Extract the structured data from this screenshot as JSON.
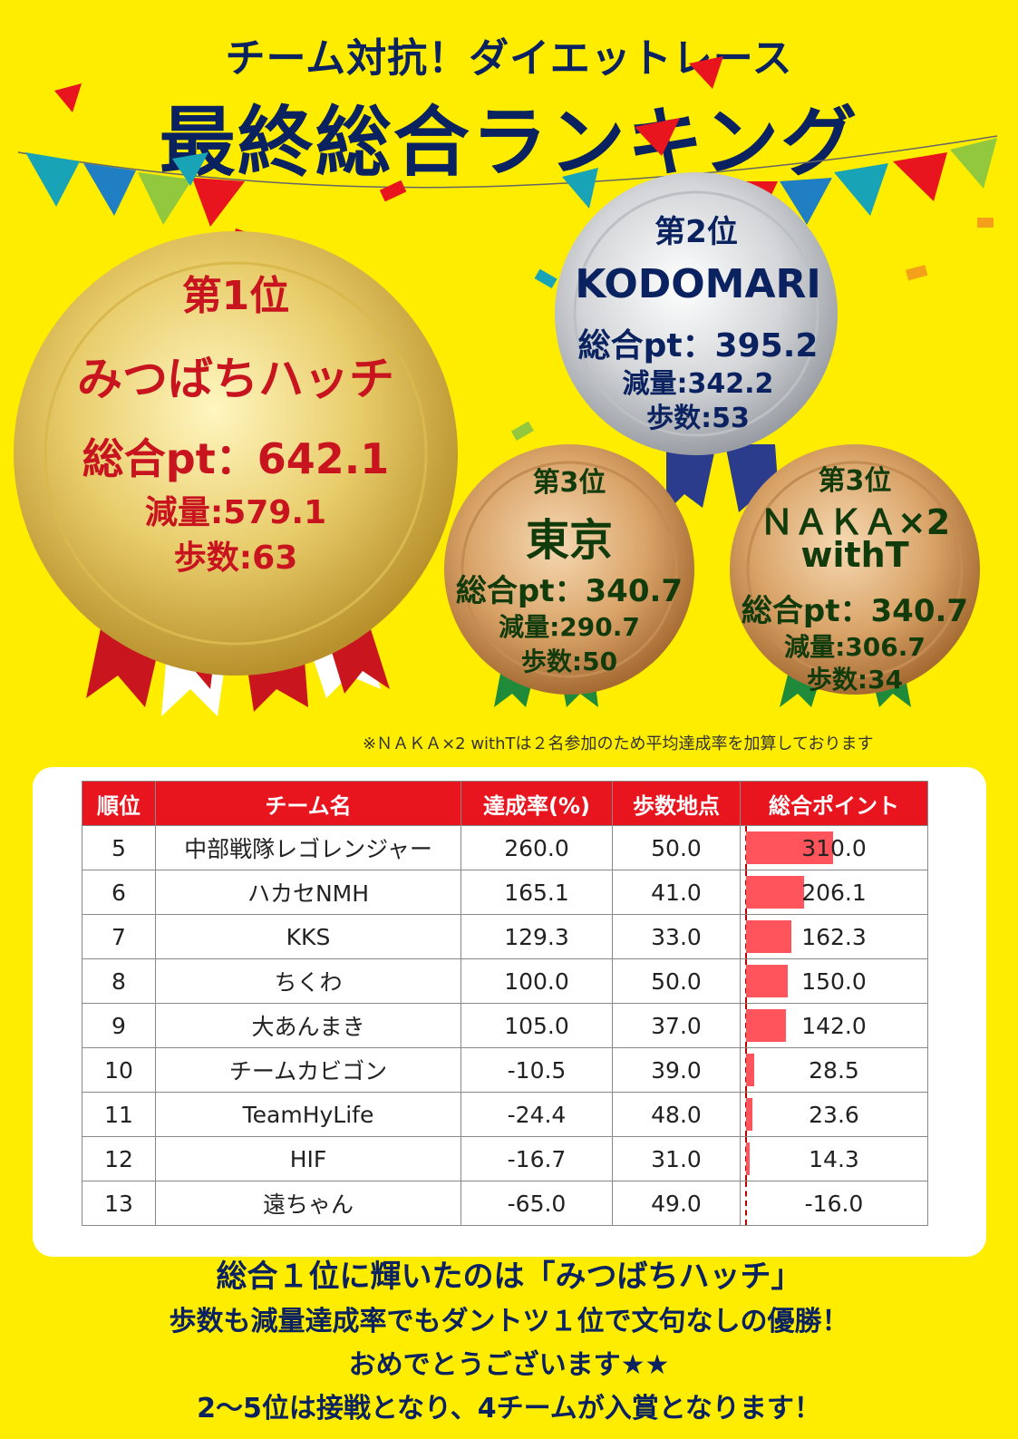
{
  "header": {
    "subtitle": "チーム対抗！ダイエットレース",
    "title": "最終総合ランキング"
  },
  "medals": [
    {
      "rank": "第1位",
      "team": "みつばちハッチ",
      "total": "総合pt：642.1",
      "weight": "減量:579.1",
      "steps": "歩数:63"
    },
    {
      "rank": "第2位",
      "team": "KODOMARI",
      "total": "総合pt：395.2",
      "weight": "減量:342.2",
      "steps": "歩数:53"
    },
    {
      "rank": "第3位",
      "team": "東京",
      "total": "総合pt：340.7",
      "weight": "減量:290.7",
      "steps": "歩数:50"
    },
    {
      "rank": "第3位",
      "team": "ＮＡＫＡ×2",
      "team2": "withT",
      "total": "総合pt：340.7",
      "weight": "減量:306.7",
      "steps": "歩数:34"
    }
  ],
  "note": "※ＮＡＫＡ×2 withTは２名参加のため平均達成率を加算しております",
  "table": {
    "headers": [
      "順位",
      "チーム名",
      "達成率(%)",
      "歩数地点",
      "総合ポイント"
    ],
    "rows": [
      {
        "rank": "5",
        "team": "中部戦隊レゴレンジャー",
        "rate": "260.0",
        "steps": "50.0",
        "points": "310.0",
        "value": 310.0
      },
      {
        "rank": "6",
        "team": "ハカセNMH",
        "rate": "165.1",
        "steps": "41.0",
        "points": "206.1",
        "value": 206.1
      },
      {
        "rank": "7",
        "team": "KKS",
        "rate": "129.3",
        "steps": "33.0",
        "points": "162.3",
        "value": 162.3
      },
      {
        "rank": "8",
        "team": "ちくわ",
        "rate": "100.0",
        "steps": "50.0",
        "points": "150.0",
        "value": 150.0
      },
      {
        "rank": "9",
        "team": "大あんまき",
        "rate": "105.0",
        "steps": "37.0",
        "points": "142.0",
        "value": 142.0
      },
      {
        "rank": "10",
        "team": "チームカビゴン",
        "rate": "-10.5",
        "steps": "39.0",
        "points": "28.5",
        "value": 28.5
      },
      {
        "rank": "11",
        "team": "TeamHyLife",
        "rate": "-24.4",
        "steps": "48.0",
        "points": "23.6",
        "value": 23.6
      },
      {
        "rank": "12",
        "team": "HIF",
        "rate": "-16.7",
        "steps": "31.0",
        "points": "14.3",
        "value": 14.3
      },
      {
        "rank": "13",
        "team": "遠ちゃん",
        "rate": "-65.0",
        "steps": "49.0",
        "points": "-16.0",
        "value": -16.0
      }
    ]
  },
  "footer": {
    "line1": "総合１位に輝いたのは「みつばちハッチ」",
    "line2": "歩数も減量達成率でもダントツ１位で文句なしの優勝！",
    "line3": "おめでとうございます★★",
    "line4": "2〜5位は接戦となり、4チームが入賞となります！"
  },
  "colors": {
    "background": "#ffed00",
    "navy": "#0b2260",
    "red": "#c8141e",
    "header_red": "#e8141e",
    "bar": "#ff545c",
    "green_text": "#123b0c"
  }
}
